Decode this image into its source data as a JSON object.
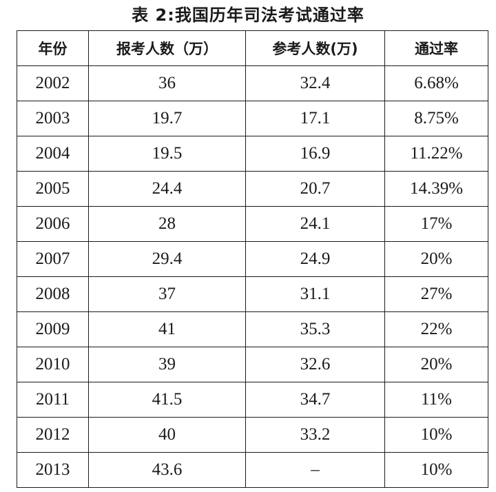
{
  "title": "表 2:我国历年司法考试通过率",
  "table": {
    "headers": {
      "year": "年份",
      "registered": "报考人数（万）",
      "attended": "参考人数(万)",
      "pass_rate": "通过率"
    },
    "rows": [
      {
        "year": "2002",
        "registered": "36",
        "attended": "32.4",
        "pass_rate": "6.68%"
      },
      {
        "year": "2003",
        "registered": "19.7",
        "attended": "17.1",
        "pass_rate": "8.75%"
      },
      {
        "year": "2004",
        "registered": "19.5",
        "attended": "16.9",
        "pass_rate": "11.22%"
      },
      {
        "year": "2005",
        "registered": "24.4",
        "attended": "20.7",
        "pass_rate": "14.39%"
      },
      {
        "year": "2006",
        "registered": "28",
        "attended": "24.1",
        "pass_rate": "17%"
      },
      {
        "year": "2007",
        "registered": "29.4",
        "attended": "24.9",
        "pass_rate": "20%"
      },
      {
        "year": "2008",
        "registered": "37",
        "attended": "31.1",
        "pass_rate": "27%"
      },
      {
        "year": "2009",
        "registered": "41",
        "attended": "35.3",
        "pass_rate": "22%"
      },
      {
        "year": "2010",
        "registered": "39",
        "attended": "32.6",
        "pass_rate": "20%"
      },
      {
        "year": "2011",
        "registered": "41.5",
        "attended": "34.7",
        "pass_rate": "11%"
      },
      {
        "year": "2012",
        "registered": "40",
        "attended": "33.2",
        "pass_rate": "10%"
      },
      {
        "year": "2013",
        "registered": "43.6",
        "attended": "–",
        "pass_rate": "10%"
      }
    ]
  }
}
